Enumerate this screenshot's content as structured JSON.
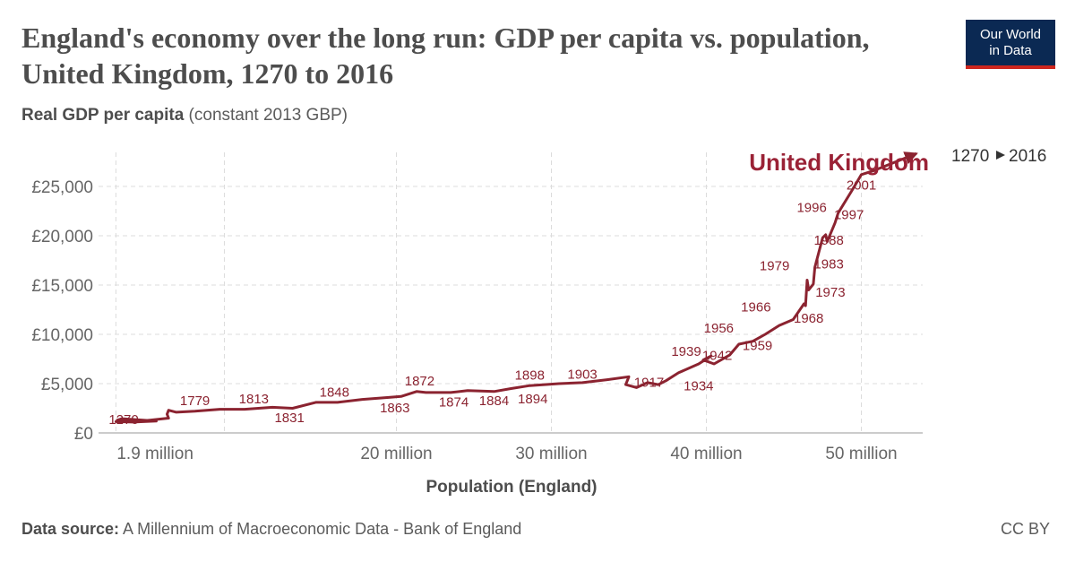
{
  "header": {
    "title": "England's economy over the long run: GDP per capita vs. population, United Kingdom, 1270 to 2016",
    "logo_line1": "Our World",
    "logo_line2": "in Data"
  },
  "y_axis_label": {
    "bold": "Real GDP per capita",
    "rest": " (constant 2013 GBP)"
  },
  "footer": {
    "source_label": "Data source:",
    "source_text": " A Millennium of Macroeconomic Data - Bank of England",
    "license": "CC BY"
  },
  "timeline": {
    "start": "1270",
    "end": "2016"
  },
  "colors": {
    "series": "#8b2330",
    "label": "#9a2236",
    "logo_bg": "#0b2953",
    "logo_accent": "#ce261e"
  },
  "chart_data": {
    "type": "line",
    "title": "England's economy over the long run: GDP per capita vs. population, United Kingdom, 1270 to 2016",
    "xlabel": "Population (England)",
    "ylabel": "Real GDP per capita (constant 2013 GBP)",
    "x_unit": "million",
    "xlim": [
      0,
      55
    ],
    "ylim": [
      0,
      26500
    ],
    "grid": true,
    "x_ticks": [
      {
        "value": 1.9,
        "label": "1.9 million"
      },
      {
        "value": 20,
        "label": "20 million"
      },
      {
        "value": 30,
        "label": "30 million"
      },
      {
        "value": 40,
        "label": "40 million"
      },
      {
        "value": 50,
        "label": "50 million"
      }
    ],
    "y_ticks": [
      {
        "value": 0,
        "label": "£0"
      },
      {
        "value": 5000,
        "label": "£5,000"
      },
      {
        "value": 10000,
        "label": "£10,000"
      },
      {
        "value": 15000,
        "label": "£15,000"
      },
      {
        "value": 20000,
        "label": "£20,000"
      },
      {
        "value": 25000,
        "label": "£25,000"
      }
    ],
    "series": [
      {
        "name": "United Kingdom",
        "points": [
          {
            "year": 1270,
            "x": 1.9,
            "y": 1150
          },
          {
            "year": 1300,
            "x": 3.0,
            "y": 1100
          },
          {
            "year": 1350,
            "x": 4.5,
            "y": 1200
          },
          {
            "year": 1400,
            "x": 2.3,
            "y": 1450
          },
          {
            "year": 1450,
            "x": 2.0,
            "y": 1300
          },
          {
            "year": 1500,
            "x": 2.5,
            "y": 1250
          },
          {
            "year": 1550,
            "x": 3.5,
            "y": 1200
          },
          {
            "year": 1600,
            "x": 4.1,
            "y": 1300
          },
          {
            "year": 1650,
            "x": 5.3,
            "y": 1500
          },
          {
            "year": 1700,
            "x": 5.2,
            "y": 1900
          },
          {
            "year": 1720,
            "x": 5.3,
            "y": 2300
          },
          {
            "year": 1750,
            "x": 5.8,
            "y": 2100
          },
          {
            "year": 1779,
            "x": 7.0,
            "y": 2200
          },
          {
            "year": 1800,
            "x": 8.6,
            "y": 2400
          },
          {
            "year": 1813,
            "x": 10.2,
            "y": 2400
          },
          {
            "year": 1825,
            "x": 12.0,
            "y": 2600
          },
          {
            "year": 1831,
            "x": 13.3,
            "y": 2500
          },
          {
            "year": 1840,
            "x": 14.8,
            "y": 3100
          },
          {
            "year": 1848,
            "x": 16.2,
            "y": 3100
          },
          {
            "year": 1855,
            "x": 17.8,
            "y": 3400
          },
          {
            "year": 1863,
            "x": 19.5,
            "y": 3600
          },
          {
            "year": 1868,
            "x": 20.3,
            "y": 3700
          },
          {
            "year": 1872,
            "x": 21.3,
            "y": 4200
          },
          {
            "year": 1874,
            "x": 21.9,
            "y": 4100
          },
          {
            "year": 1880,
            "x": 23.5,
            "y": 4100
          },
          {
            "year": 1884,
            "x": 24.6,
            "y": 4300
          },
          {
            "year": 1890,
            "x": 26.3,
            "y": 4200
          },
          {
            "year": 1894,
            "x": 27.4,
            "y": 4500
          },
          {
            "year": 1898,
            "x": 28.6,
            "y": 4800
          },
          {
            "year": 1903,
            "x": 30.5,
            "y": 5000
          },
          {
            "year": 1908,
            "x": 32.0,
            "y": 5100
          },
          {
            "year": 1913,
            "x": 33.6,
            "y": 5400
          },
          {
            "year": 1917,
            "x": 35.0,
            "y": 5700
          },
          {
            "year": 1919,
            "x": 34.8,
            "y": 4900
          },
          {
            "year": 1921,
            "x": 35.5,
            "y": 4600
          },
          {
            "year": 1929,
            "x": 36.2,
            "y": 5100
          },
          {
            "year": 1931,
            "x": 36.9,
            "y": 4900
          },
          {
            "year": 1934,
            "x": 37.4,
            "y": 5300
          },
          {
            "year": 1937,
            "x": 38.2,
            "y": 6100
          },
          {
            "year": 1939,
            "x": 39.5,
            "y": 7000
          },
          {
            "year": 1942,
            "x": 40.3,
            "y": 7800
          },
          {
            "year": 1945,
            "x": 39.8,
            "y": 7400
          },
          {
            "year": 1948,
            "x": 40.5,
            "y": 7000
          },
          {
            "year": 1952,
            "x": 41.5,
            "y": 7900
          },
          {
            "year": 1956,
            "x": 42.1,
            "y": 9000
          },
          {
            "year": 1959,
            "x": 43.0,
            "y": 9300
          },
          {
            "year": 1963,
            "x": 43.8,
            "y": 10000
          },
          {
            "year": 1966,
            "x": 44.7,
            "y": 10900
          },
          {
            "year": 1968,
            "x": 45.6,
            "y": 11500
          },
          {
            "year": 1973,
            "x": 46.3,
            "y": 13100
          },
          {
            "year": 1975,
            "x": 46.4,
            "y": 12900
          },
          {
            "year": 1979,
            "x": 46.5,
            "y": 15500
          },
          {
            "year": 1981,
            "x": 46.6,
            "y": 14500
          },
          {
            "year": 1983,
            "x": 46.9,
            "y": 15100
          },
          {
            "year": 1985,
            "x": 47.0,
            "y": 16800
          },
          {
            "year": 1988,
            "x": 47.5,
            "y": 19800
          },
          {
            "year": 1990,
            "x": 47.7,
            "y": 20100
          },
          {
            "year": 1992,
            "x": 47.8,
            "y": 19400
          },
          {
            "year": 1996,
            "x": 48.3,
            "y": 21300
          },
          {
            "year": 1997,
            "x": 48.5,
            "y": 22300
          },
          {
            "year": 2001,
            "x": 49.4,
            "y": 24600
          },
          {
            "year": 2005,
            "x": 50.0,
            "y": 26200
          },
          {
            "year": 2008,
            "x": 50.8,
            "y": 26600
          },
          {
            "year": 2016,
            "x": 53.5,
            "y": 28300
          }
        ]
      }
    ],
    "year_labels": [
      {
        "year": "1270",
        "x": 2.4,
        "y": 900
      },
      {
        "year": "1779",
        "x": 7.0,
        "y": 2800
      },
      {
        "year": "1813",
        "x": 10.8,
        "y": 3000
      },
      {
        "year": "1831",
        "x": 13.1,
        "y": 1100
      },
      {
        "year": "1848",
        "x": 16.0,
        "y": 3700
      },
      {
        "year": "1863",
        "x": 19.9,
        "y": 2100
      },
      {
        "year": "1872",
        "x": 21.5,
        "y": 4800
      },
      {
        "year": "1874",
        "x": 23.7,
        "y": 2700
      },
      {
        "year": "1884",
        "x": 26.3,
        "y": 2800
      },
      {
        "year": "1894",
        "x": 28.8,
        "y": 3000
      },
      {
        "year": "1898",
        "x": 28.6,
        "y": 5400
      },
      {
        "year": "1903",
        "x": 32.0,
        "y": 5500
      },
      {
        "year": "1917",
        "x": 36.3,
        "y": 4700
      },
      {
        "year": "1934",
        "x": 39.5,
        "y": 4300
      },
      {
        "year": "1939",
        "x": 38.7,
        "y": 7800
      },
      {
        "year": "1942",
        "x": 40.7,
        "y": 7400
      },
      {
        "year": "1956",
        "x": 40.8,
        "y": 10200
      },
      {
        "year": "1959",
        "x": 43.3,
        "y": 8400
      },
      {
        "year": "1966",
        "x": 43.2,
        "y": 12300
      },
      {
        "year": "1968",
        "x": 46.6,
        "y": 11200
      },
      {
        "year": "1973",
        "x": 48.0,
        "y": 13800
      },
      {
        "year": "1979",
        "x": 44.4,
        "y": 16500
      },
      {
        "year": "1983",
        "x": 47.9,
        "y": 16700
      },
      {
        "year": "1988",
        "x": 47.9,
        "y": 19100
      },
      {
        "year": "1996",
        "x": 46.8,
        "y": 22400
      },
      {
        "year": "1997",
        "x": 49.2,
        "y": 21700
      },
      {
        "year": "2001",
        "x": 50.0,
        "y": 24700
      }
    ]
  }
}
